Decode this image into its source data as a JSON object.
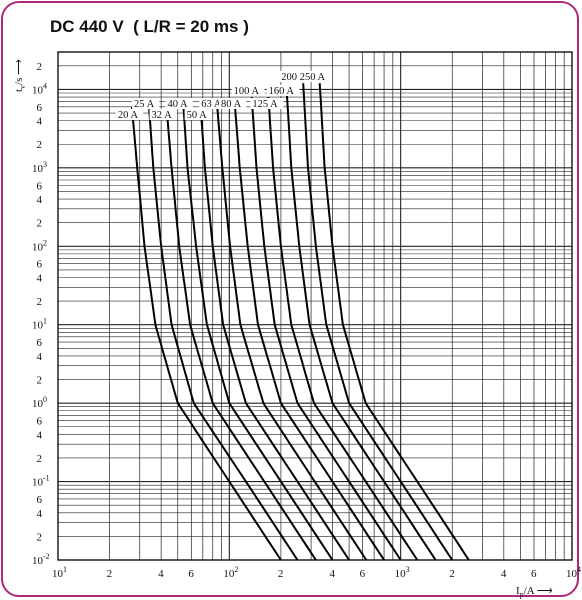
{
  "chart_data": {
    "type": "line",
    "title": "DC 440 V  ( L/R = 20 ms )",
    "xlabel": "I_p/A",
    "ylabel": "t_v/s",
    "xscale": "log",
    "yscale": "log",
    "xlim": [
      10,
      10000
    ],
    "ylim": [
      0.01,
      30000
    ],
    "grid": true,
    "x_ticks": [
      {
        "v": 10,
        "m": "10",
        "e": "1"
      },
      {
        "v": 20,
        "m": "2",
        "e": ""
      },
      {
        "v": 40,
        "m": "4",
        "e": ""
      },
      {
        "v": 60,
        "m": "6",
        "e": ""
      },
      {
        "v": 100,
        "m": "10",
        "e": "2"
      },
      {
        "v": 200,
        "m": "2",
        "e": ""
      },
      {
        "v": 400,
        "m": "4",
        "e": ""
      },
      {
        "v": 600,
        "m": "6",
        "e": ""
      },
      {
        "v": 1000,
        "m": "10",
        "e": "3"
      },
      {
        "v": 2000,
        "m": "2",
        "e": ""
      },
      {
        "v": 4000,
        "m": "4",
        "e": ""
      },
      {
        "v": 6000,
        "m": "6",
        "e": ""
      },
      {
        "v": 10000,
        "m": "10",
        "e": "4"
      }
    ],
    "y_ticks": [
      {
        "v": 20000,
        "m": "2",
        "e": ""
      },
      {
        "v": 10000,
        "m": "10",
        "e": "4"
      },
      {
        "v": 6000,
        "m": "6",
        "e": ""
      },
      {
        "v": 4000,
        "m": "4",
        "e": ""
      },
      {
        "v": 2000,
        "m": "2",
        "e": ""
      },
      {
        "v": 1000,
        "m": "10",
        "e": "3"
      },
      {
        "v": 600,
        "m": "6",
        "e": ""
      },
      {
        "v": 400,
        "m": "4",
        "e": ""
      },
      {
        "v": 200,
        "m": "2",
        "e": ""
      },
      {
        "v": 100,
        "m": "10",
        "e": "2"
      },
      {
        "v": 60,
        "m": "6",
        "e": ""
      },
      {
        "v": 40,
        "m": "4",
        "e": ""
      },
      {
        "v": 20,
        "m": "2",
        "e": ""
      },
      {
        "v": 10,
        "m": "10",
        "e": "1"
      },
      {
        "v": 6,
        "m": "6",
        "e": ""
      },
      {
        "v": 4,
        "m": "4",
        "e": ""
      },
      {
        "v": 2,
        "m": "2",
        "e": ""
      },
      {
        "v": 1,
        "m": "10",
        "e": "0"
      },
      {
        "v": 0.6,
        "m": "6",
        "e": ""
      },
      {
        "v": 0.4,
        "m": "4",
        "e": ""
      },
      {
        "v": 0.2,
        "m": "2",
        "e": ""
      },
      {
        "v": 0.1,
        "m": "10",
        "e": "-1"
      },
      {
        "v": 0.06,
        "m": "6",
        "e": ""
      },
      {
        "v": 0.04,
        "m": "4",
        "e": ""
      },
      {
        "v": 0.02,
        "m": "2",
        "e": ""
      },
      {
        "v": 0.01,
        "m": "10",
        "e": "-2"
      }
    ],
    "series": [
      {
        "name": "20 A",
        "points": [
          [
            27,
            6000
          ],
          [
            29,
            1000
          ],
          [
            32,
            100
          ],
          [
            37,
            10
          ],
          [
            50,
            1
          ],
          [
            100,
            0.1
          ],
          [
            200,
            0.01
          ]
        ]
      },
      {
        "name": "25 A",
        "points": [
          [
            34,
            6000
          ],
          [
            36,
            1000
          ],
          [
            40,
            100
          ],
          [
            46,
            10
          ],
          [
            62,
            1
          ],
          [
            125,
            0.1
          ],
          [
            250,
            0.01
          ]
        ]
      },
      {
        "name": "32 A",
        "points": [
          [
            43,
            6000
          ],
          [
            46,
            1000
          ],
          [
            51,
            100
          ],
          [
            59,
            10
          ],
          [
            80,
            1
          ],
          [
            160,
            0.1
          ],
          [
            320,
            0.01
          ]
        ]
      },
      {
        "name": "40 A",
        "points": [
          [
            54,
            6000
          ],
          [
            57,
            1000
          ],
          [
            64,
            100
          ],
          [
            74,
            10
          ],
          [
            100,
            1
          ],
          [
            200,
            0.1
          ],
          [
            400,
            0.01
          ]
        ]
      },
      {
        "name": "50 A",
        "points": [
          [
            68,
            6000
          ],
          [
            72,
            1000
          ],
          [
            80,
            100
          ],
          [
            92,
            10
          ],
          [
            125,
            1
          ],
          [
            250,
            0.1
          ],
          [
            500,
            0.01
          ]
        ]
      },
      {
        "name": "63 A",
        "points": [
          [
            85,
            6000
          ],
          [
            91,
            1000
          ],
          [
            101,
            100
          ],
          [
            116,
            10
          ],
          [
            158,
            1
          ],
          [
            315,
            0.1
          ],
          [
            630,
            0.01
          ]
        ]
      },
      {
        "name": "80 A",
        "points": [
          [
            108,
            6000
          ],
          [
            115,
            1000
          ],
          [
            128,
            100
          ],
          [
            147,
            10
          ],
          [
            200,
            1
          ],
          [
            400,
            0.1
          ],
          [
            800,
            0.01
          ]
        ]
      },
      {
        "name": "100 A",
        "points": [
          [
            135,
            8000
          ],
          [
            144,
            1000
          ],
          [
            160,
            100
          ],
          [
            184,
            10
          ],
          [
            250,
            1
          ],
          [
            500,
            0.1
          ],
          [
            1000,
            0.01
          ]
        ]
      },
      {
        "name": "125 A",
        "points": [
          [
            169,
            8000
          ],
          [
            180,
            1000
          ],
          [
            200,
            100
          ],
          [
            230,
            10
          ],
          [
            312,
            1
          ],
          [
            625,
            0.1
          ],
          [
            1250,
            0.01
          ]
        ]
      },
      {
        "name": "160 A",
        "points": [
          [
            216,
            10000
          ],
          [
            230,
            1000
          ],
          [
            256,
            100
          ],
          [
            294,
            10
          ],
          [
            400,
            1
          ],
          [
            800,
            0.1
          ],
          [
            1600,
            0.01
          ]
        ]
      },
      {
        "name": "200 A",
        "points": [
          [
            270,
            12000
          ],
          [
            288,
            1000
          ],
          [
            320,
            100
          ],
          [
            368,
            10
          ],
          [
            500,
            1
          ],
          [
            1000,
            0.1
          ],
          [
            2000,
            0.01
          ]
        ]
      },
      {
        "name": "250 A",
        "points": [
          [
            337,
            12000
          ],
          [
            360,
            1000
          ],
          [
            400,
            100
          ],
          [
            460,
            10
          ],
          [
            625,
            1
          ],
          [
            1250,
            0.1
          ],
          [
            2500,
            0.01
          ]
        ]
      }
    ]
  }
}
